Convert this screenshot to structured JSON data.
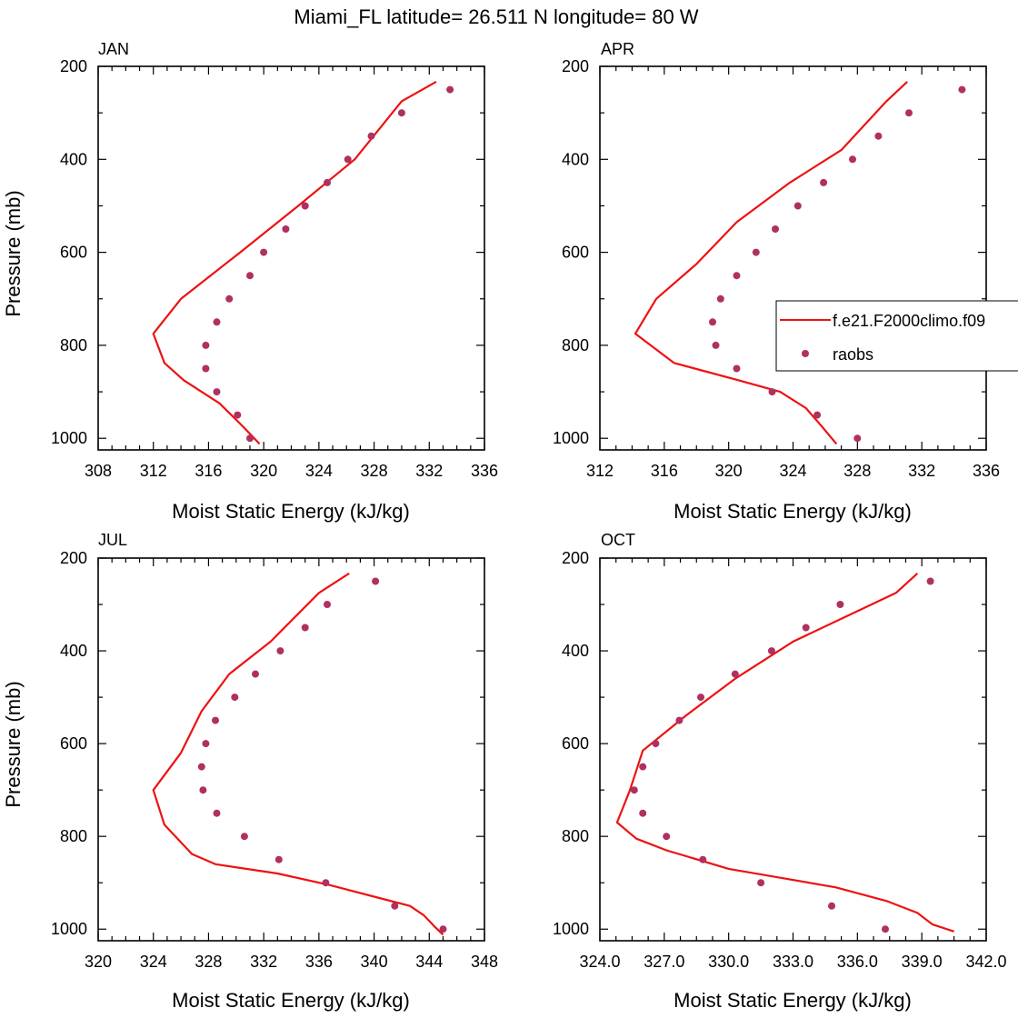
{
  "figure": {
    "title": "Miami_FL  latitude= 26.511 N longitude= 80 W"
  },
  "legend": {
    "model_label": "f.e21.F2000climo.f09",
    "obs_label": "raobs"
  },
  "colors": {
    "model_line": "#ee1111",
    "obs_marker": "#b03060"
  },
  "chart_data": [
    {
      "type": "line",
      "panel": "JAN",
      "title": "JAN",
      "xlabel": "Moist Static Energy (kJ/kg)",
      "ylabel": "Pressure (mb)",
      "xlim": [
        308,
        336
      ],
      "ylim": [
        200,
        1025
      ],
      "y_inverted": true,
      "xticks": [
        308,
        312,
        316,
        320,
        324,
        328,
        332,
        336
      ],
      "xtick_labels": [
        "308",
        "312",
        "316",
        "320",
        "324",
        "328",
        "332",
        "336"
      ],
      "yticks": [
        200,
        400,
        600,
        800,
        1000
      ],
      "yticks_minor": [
        300,
        500,
        700,
        900
      ],
      "series": [
        {
          "name": "f.e21.F2000climo.f09",
          "kind": "line",
          "x": [
            319.7,
            318.5,
            316.8,
            314.2,
            312.8,
            312.0,
            314.0,
            318.3,
            322.5,
            326.6,
            330.0,
            332.5
          ],
          "y": [
            1012,
            975,
            925,
            875,
            838,
            775,
            700,
            600,
            500,
            400,
            275,
            233
          ]
        },
        {
          "name": "raobs",
          "kind": "scatter",
          "x": [
            319.0,
            318.1,
            316.6,
            315.8,
            315.8,
            316.6,
            317.5,
            319.0,
            320.0,
            321.6,
            323.0,
            324.6,
            326.1,
            327.8,
            330.0,
            333.5
          ],
          "y": [
            1000,
            950,
            900,
            850,
            800,
            750,
            700,
            650,
            600,
            550,
            500,
            450,
            400,
            350,
            300,
            250
          ]
        }
      ]
    },
    {
      "type": "line",
      "panel": "APR",
      "title": "APR",
      "xlabel": "Moist Static Energy (kJ/kg)",
      "ylabel": "",
      "xlim": [
        312,
        336
      ],
      "ylim": [
        200,
        1025
      ],
      "y_inverted": true,
      "xticks": [
        312,
        316,
        320,
        324,
        328,
        332,
        336
      ],
      "xtick_labels": [
        "312",
        "316",
        "320",
        "324",
        "328",
        "332",
        "336"
      ],
      "yticks": [
        200,
        400,
        600,
        800,
        1000
      ],
      "yticks_minor": [
        300,
        500,
        700,
        900
      ],
      "series": [
        {
          "name": "f.e21.F2000climo.f09",
          "kind": "line",
          "x": [
            326.7,
            325.8,
            324.8,
            323.2,
            320.6,
            316.6,
            314.2,
            315.5,
            318.0,
            320.5,
            323.8,
            327.0,
            329.8,
            331.1
          ],
          "y": [
            1012,
            975,
            935,
            900,
            875,
            838,
            775,
            700,
            625,
            535,
            450,
            380,
            275,
            233
          ]
        },
        {
          "name": "raobs",
          "kind": "scatter",
          "x": [
            328.0,
            325.5,
            322.7,
            320.5,
            319.2,
            319.0,
            319.5,
            320.5,
            321.7,
            322.9,
            324.3,
            325.9,
            327.7,
            329.3,
            331.2,
            334.5
          ],
          "y": [
            1000,
            950,
            900,
            850,
            800,
            750,
            700,
            650,
            600,
            550,
            500,
            450,
            400,
            350,
            300,
            250
          ]
        }
      ]
    },
    {
      "type": "line",
      "panel": "JUL",
      "title": "JUL",
      "xlabel": "Moist Static Energy (kJ/kg)",
      "ylabel": "Pressure (mb)",
      "xlim": [
        320,
        348
      ],
      "ylim": [
        200,
        1025
      ],
      "y_inverted": true,
      "xticks": [
        320,
        324,
        328,
        332,
        336,
        340,
        344,
        348
      ],
      "xtick_labels": [
        "320",
        "324",
        "328",
        "332",
        "336",
        "340",
        "344",
        "348"
      ],
      "yticks": [
        200,
        400,
        600,
        800,
        1000
      ],
      "yticks_minor": [
        300,
        500,
        700,
        900
      ],
      "series": [
        {
          "name": "f.e21.F2000climo.f09",
          "kind": "line",
          "x": [
            345.0,
            344.4,
            343.6,
            342.6,
            340.0,
            336.8,
            333.0,
            328.5,
            326.8,
            324.8,
            324.0,
            326.0,
            327.5,
            329.5,
            332.5,
            336.0,
            338.2
          ],
          "y": [
            1012,
            995,
            970,
            950,
            930,
            905,
            880,
            860,
            838,
            775,
            700,
            620,
            530,
            450,
            380,
            275,
            233
          ]
        },
        {
          "name": "raobs",
          "kind": "scatter",
          "x": [
            345.0,
            341.5,
            336.5,
            333.1,
            330.6,
            328.6,
            327.6,
            327.5,
            327.8,
            328.5,
            329.9,
            331.4,
            333.2,
            335.0,
            336.6,
            340.1
          ],
          "y": [
            1000,
            950,
            900,
            850,
            800,
            750,
            700,
            650,
            600,
            550,
            500,
            450,
            400,
            350,
            300,
            250
          ]
        }
      ]
    },
    {
      "type": "line",
      "panel": "OCT",
      "title": "OCT",
      "xlabel": "Moist Static Energy (kJ/kg)",
      "ylabel": "",
      "xlim": [
        324,
        342
      ],
      "ylim": [
        200,
        1025
      ],
      "y_inverted": true,
      "xticks": [
        324,
        327,
        330,
        333,
        336,
        339,
        342
      ],
      "xtick_labels": [
        "324.0",
        "327.0",
        "330.0",
        "333.0",
        "336.0",
        "339.0",
        "342.0"
      ],
      "yticks": [
        200,
        400,
        600,
        800,
        1000
      ],
      "yticks_minor": [
        300,
        500,
        700,
        900
      ],
      "series": [
        {
          "name": "f.e21.F2000climo.f09",
          "kind": "line",
          "x": [
            340.5,
            339.5,
            338.8,
            337.4,
            335.0,
            332.5,
            330.0,
            327.1,
            325.7,
            324.8,
            325.4,
            326.0,
            328.0,
            330.3,
            333.0,
            336.2,
            337.8,
            338.8
          ],
          "y": [
            1005,
            990,
            965,
            940,
            910,
            890,
            870,
            830,
            805,
            770,
            700,
            615,
            540,
            460,
            380,
            310,
            275,
            233
          ]
        },
        {
          "name": "raobs",
          "kind": "scatter",
          "x": [
            337.3,
            334.8,
            331.5,
            328.8,
            327.1,
            326.0,
            325.6,
            326.0,
            326.6,
            327.7,
            328.7,
            330.3,
            332.0,
            333.6,
            335.2,
            339.4
          ],
          "y": [
            1000,
            950,
            900,
            850,
            800,
            750,
            700,
            650,
            600,
            550,
            500,
            450,
            400,
            350,
            300,
            250
          ]
        }
      ]
    }
  ]
}
